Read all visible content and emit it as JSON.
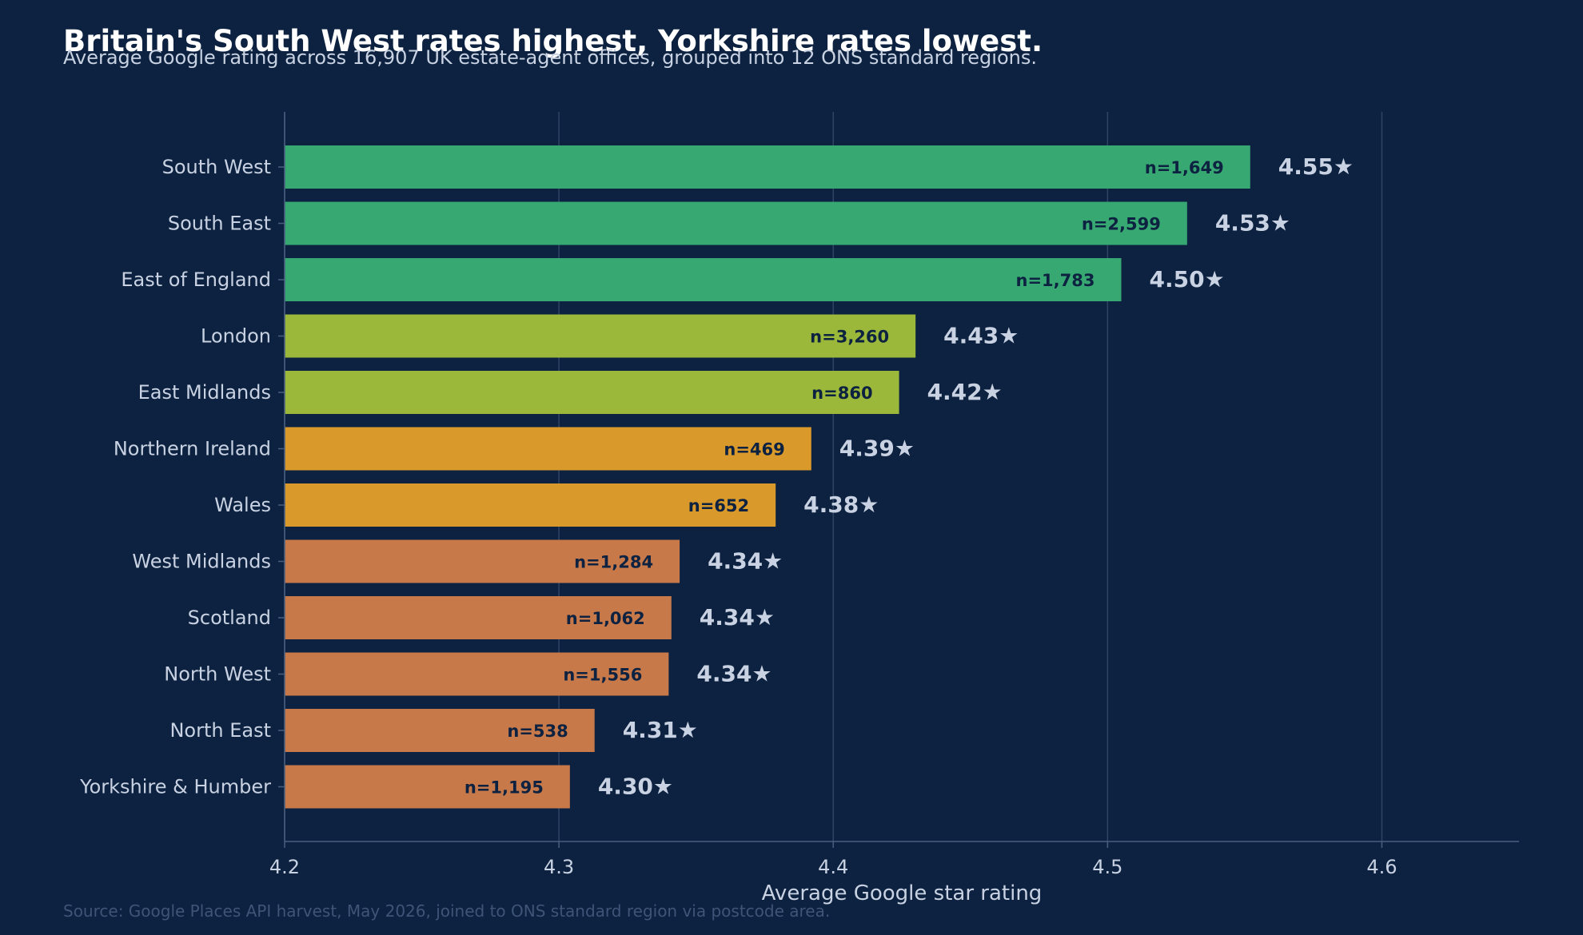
{
  "chart_data": {
    "type": "bar",
    "orientation": "horizontal",
    "title": "Britain's South West rates highest, Yorkshire rates lowest.",
    "subtitle": "Average Google rating across 16,907 UK estate-agent offices, grouped into 12 ONS standard regions.",
    "xlabel": "Average Google star rating",
    "ylabel": "",
    "source": "Source: Google Places API harvest, May 2026, joined to ONS standard region via postcode area.",
    "xlim": [
      4.2,
      4.65
    ],
    "xticks": [
      "4.2",
      "4.3",
      "4.4",
      "4.5",
      "4.6"
    ],
    "grid": "vertical",
    "value_suffix": "★",
    "categories": [
      "South West",
      "South East",
      "East of England",
      "London",
      "East Midlands",
      "Northern Ireland",
      "Wales",
      "West Midlands",
      "Scotland",
      "North West",
      "North East",
      "Yorkshire & Humber"
    ],
    "values": [
      4.552,
      4.529,
      4.505,
      4.43,
      4.424,
      4.392,
      4.379,
      4.344,
      4.341,
      4.34,
      4.313,
      4.304
    ],
    "value_labels": [
      "4.55",
      "4.53",
      "4.50",
      "4.43",
      "4.42",
      "4.39",
      "4.38",
      "4.34",
      "4.34",
      "4.34",
      "4.31",
      "4.30"
    ],
    "counts": [
      "n=1,649",
      "n=2,599",
      "n=1,783",
      "n=3,260",
      "n=860",
      "n=469",
      "n=652",
      "n=1,284",
      "n=1,062",
      "n=1,556",
      "n=538",
      "n=1,195"
    ],
    "bar_colors": [
      "#38a872",
      "#38a872",
      "#38a872",
      "#9bb83a",
      "#9bb83a",
      "#d9992b",
      "#d9992b",
      "#c8794a",
      "#c8794a",
      "#c8794a",
      "#c8794a",
      "#c8794a"
    ]
  },
  "colors": {
    "background": "#0d2240",
    "grid": "#2e4463",
    "axis": "#4a5f80",
    "text": "#c8d2e2",
    "count_text": "#0d2240"
  }
}
